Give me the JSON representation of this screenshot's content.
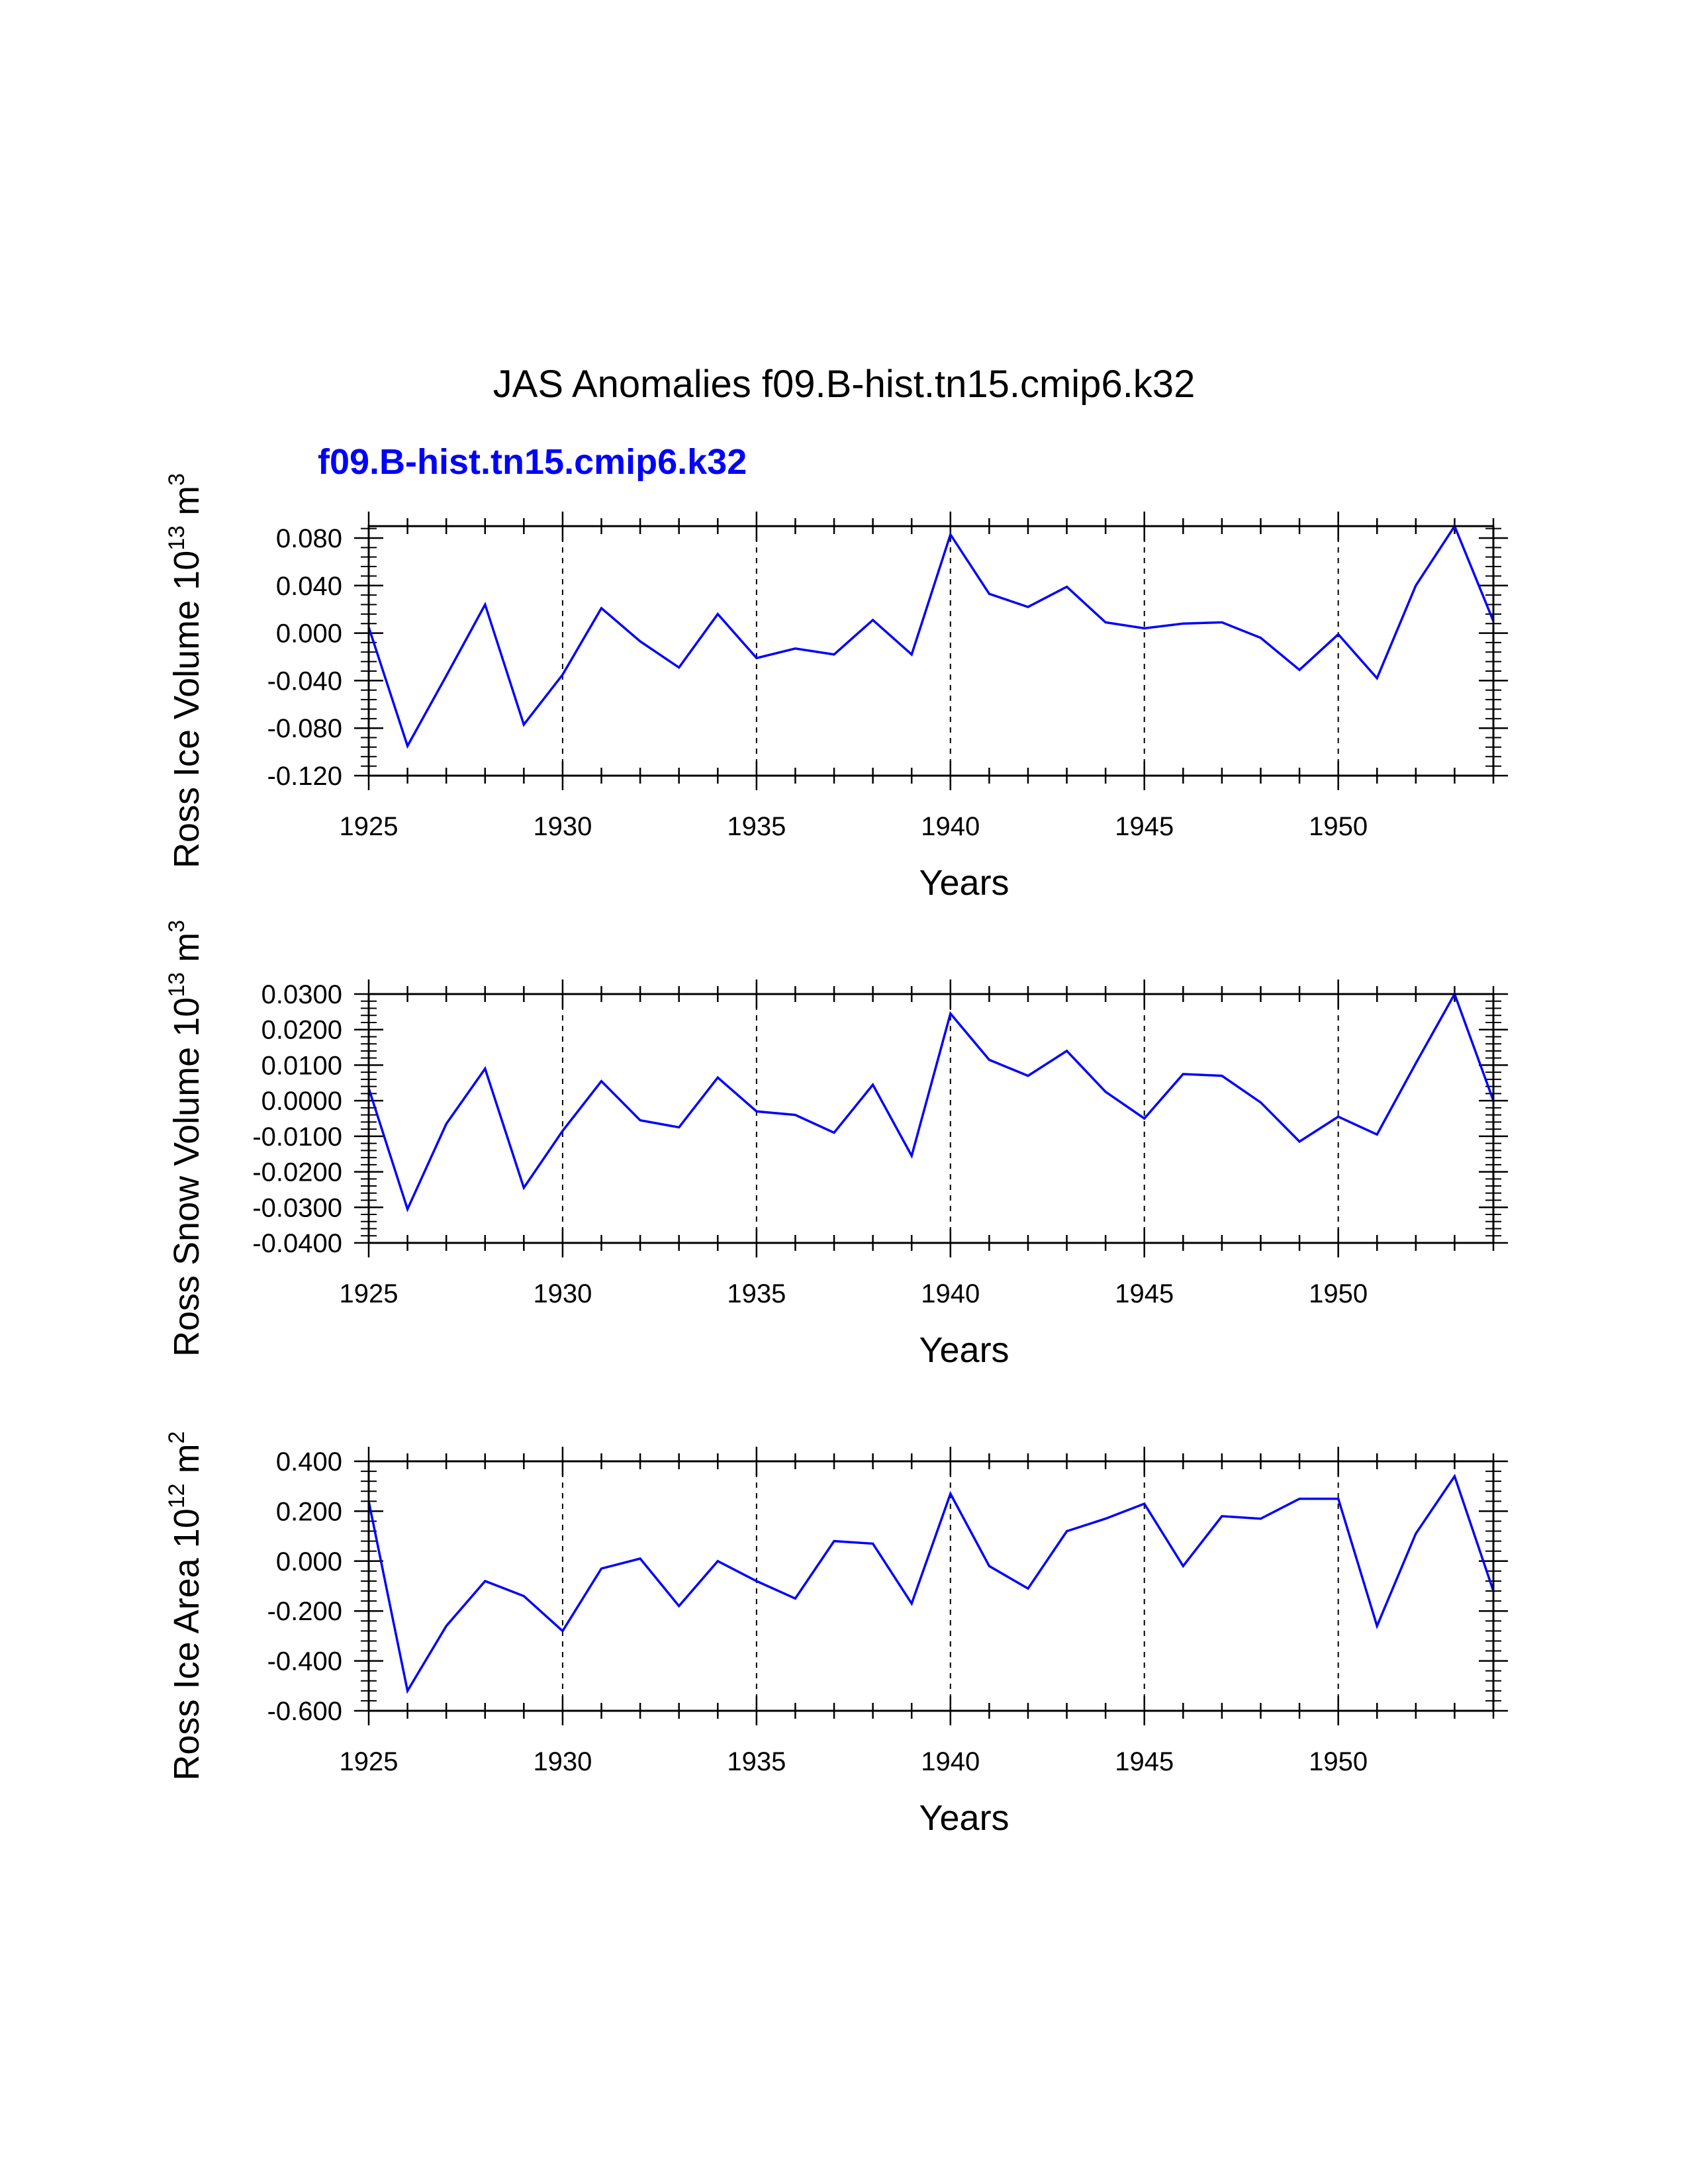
{
  "title": "JAS Anomalies f09.B-hist.tn15.cmip6.k32",
  "subtitle": "f09.B-hist.tn15.cmip6.k32",
  "series_color": "#0000ff",
  "chart_data": [
    {
      "type": "line",
      "ylabel": "Ross Ice Volume 10",
      "ylabel_exp": "13",
      "ylabel_unit": " m",
      "ylabel_unit_exp": "3",
      "xlabel": "Years",
      "ylim": [
        -0.12,
        0.09
      ],
      "yticks": [
        -0.12,
        -0.08,
        -0.04,
        0.0,
        0.04,
        0.08
      ],
      "ytick_labels": [
        "-0.120",
        "-0.080",
        "-0.040",
        "0.000",
        "0.040",
        "0.080"
      ],
      "x": [
        1925,
        1926,
        1927,
        1928,
        1929,
        1930,
        1931,
        1932,
        1933,
        1934,
        1935,
        1936,
        1937,
        1938,
        1939,
        1940,
        1941,
        1942,
        1943,
        1944,
        1945,
        1946,
        1947,
        1948,
        1949,
        1950,
        1951,
        1952,
        1953,
        1954
      ],
      "values": [
        0.005,
        -0.095,
        -0.036,
        0.024,
        -0.077,
        -0.035,
        0.021,
        -0.007,
        -0.029,
        0.016,
        -0.021,
        -0.013,
        -0.018,
        0.011,
        -0.018,
        0.083,
        0.033,
        0.022,
        0.039,
        0.009,
        0.004,
        0.008,
        0.009,
        -0.004,
        -0.031,
        -0.001,
        -0.038,
        0.04,
        0.09,
        0.01
      ]
    },
    {
      "type": "line",
      "ylabel": "Ross Snow Volume 10",
      "ylabel_exp": "13",
      "ylabel_unit": " m",
      "ylabel_unit_exp": "3",
      "xlabel": "Years",
      "ylim": [
        -0.04,
        0.03
      ],
      "yticks": [
        -0.04,
        -0.03,
        -0.02,
        -0.01,
        0.0,
        0.01,
        0.02,
        0.03
      ],
      "ytick_labels": [
        "-0.0400",
        "-0.0300",
        "-0.0200",
        "-0.0100",
        "0.0000",
        "0.0100",
        "0.0200",
        "0.0300"
      ],
      "x": [
        1925,
        1926,
        1927,
        1928,
        1929,
        1930,
        1931,
        1932,
        1933,
        1934,
        1935,
        1936,
        1937,
        1938,
        1939,
        1940,
        1941,
        1942,
        1943,
        1944,
        1945,
        1946,
        1947,
        1948,
        1949,
        1950,
        1951,
        1952,
        1953,
        1954
      ],
      "values": [
        0.0035,
        -0.0305,
        -0.0065,
        0.009,
        -0.0245,
        -0.0085,
        0.0055,
        -0.0055,
        -0.0075,
        0.0065,
        -0.003,
        -0.004,
        -0.009,
        0.0045,
        -0.0155,
        0.0245,
        0.0115,
        0.007,
        0.014,
        0.0025,
        -0.005,
        0.0075,
        0.007,
        -0.0005,
        -0.0115,
        -0.0045,
        -0.0095,
        0.0105,
        0.03,
        0.0
      ]
    },
    {
      "type": "line",
      "ylabel": "Ross Ice Area 10",
      "ylabel_exp": "12",
      "ylabel_unit": " m",
      "ylabel_unit_exp": "2",
      "xlabel": "Years",
      "ylim": [
        -0.6,
        0.4
      ],
      "yticks": [
        -0.6,
        -0.4,
        -0.2,
        0.0,
        0.2,
        0.4
      ],
      "ytick_labels": [
        "-0.600",
        "-0.400",
        "-0.200",
        "0.000",
        "0.200",
        "0.400"
      ],
      "x": [
        1925,
        1926,
        1927,
        1928,
        1929,
        1930,
        1931,
        1932,
        1933,
        1934,
        1935,
        1936,
        1937,
        1938,
        1939,
        1940,
        1941,
        1942,
        1943,
        1944,
        1945,
        1946,
        1947,
        1948,
        1949,
        1950,
        1951,
        1952,
        1953,
        1954
      ],
      "values": [
        0.24,
        -0.52,
        -0.26,
        -0.08,
        -0.14,
        -0.28,
        -0.03,
        0.01,
        -0.18,
        0.0,
        -0.08,
        -0.15,
        0.08,
        0.07,
        -0.17,
        0.27,
        -0.02,
        -0.11,
        0.12,
        0.17,
        0.23,
        -0.02,
        0.18,
        0.17,
        0.25,
        0.25,
        -0.26,
        0.11,
        0.34,
        -0.12
      ]
    }
  ],
  "x_axis": {
    "xlim": [
      1925,
      1954
    ],
    "major_ticks": [
      1925,
      1930,
      1935,
      1940,
      1945,
      1950
    ],
    "tick_labels": [
      "1925",
      "1930",
      "1935",
      "1940",
      "1945",
      "1950"
    ],
    "dashed_grid_at": [
      1930,
      1935,
      1940,
      1945,
      1950
    ]
  }
}
